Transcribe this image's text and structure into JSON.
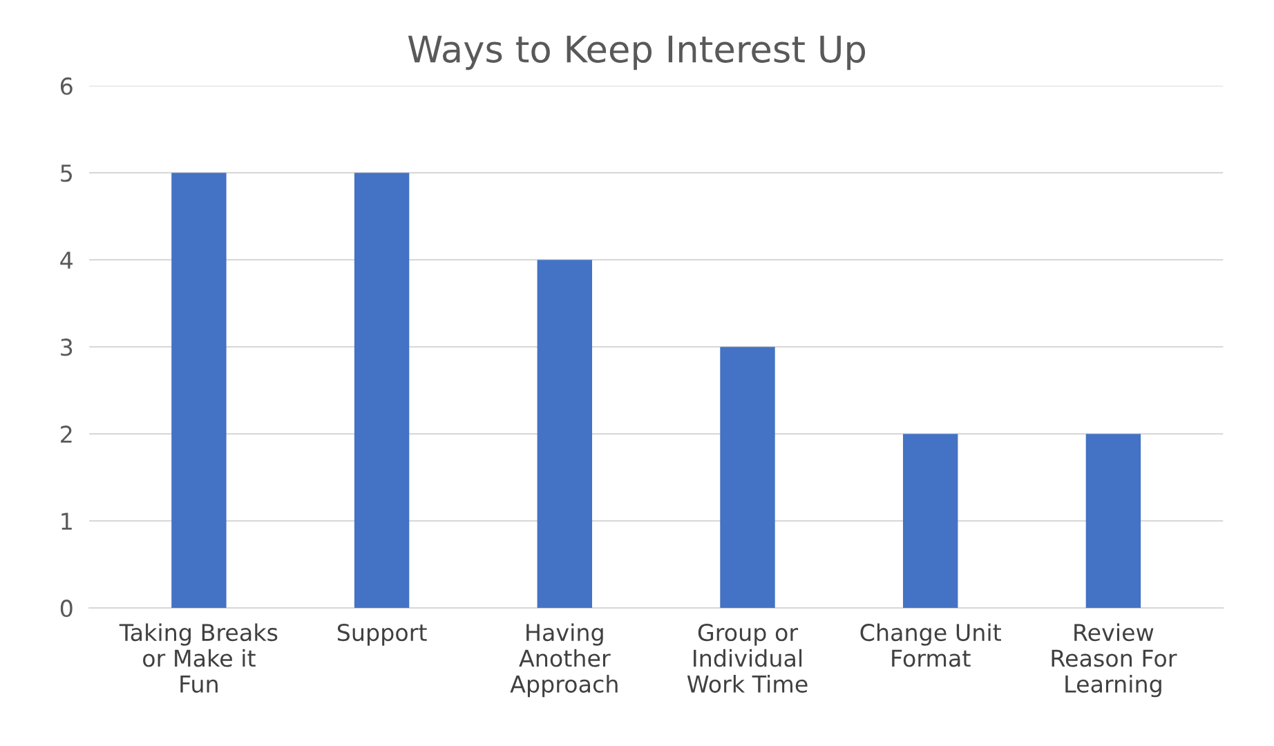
{
  "chart_data": {
    "type": "bar",
    "title": "Ways to Keep Interest Up",
    "categories": [
      "Taking Breaks\nor Make it\nFun",
      "Support",
      "Having\nAnother\nApproach",
      "Group or\nIndividual\nWork Time",
      "Change Unit\nFormat",
      "Review\nReason For\nLearning"
    ],
    "values": [
      5,
      5,
      4,
      3,
      2,
      2
    ],
    "color": "#4472c4",
    "ylim": [
      0,
      6
    ],
    "yticks": [
      0,
      1,
      2,
      3,
      4,
      5,
      6
    ],
    "grid": "y"
  }
}
